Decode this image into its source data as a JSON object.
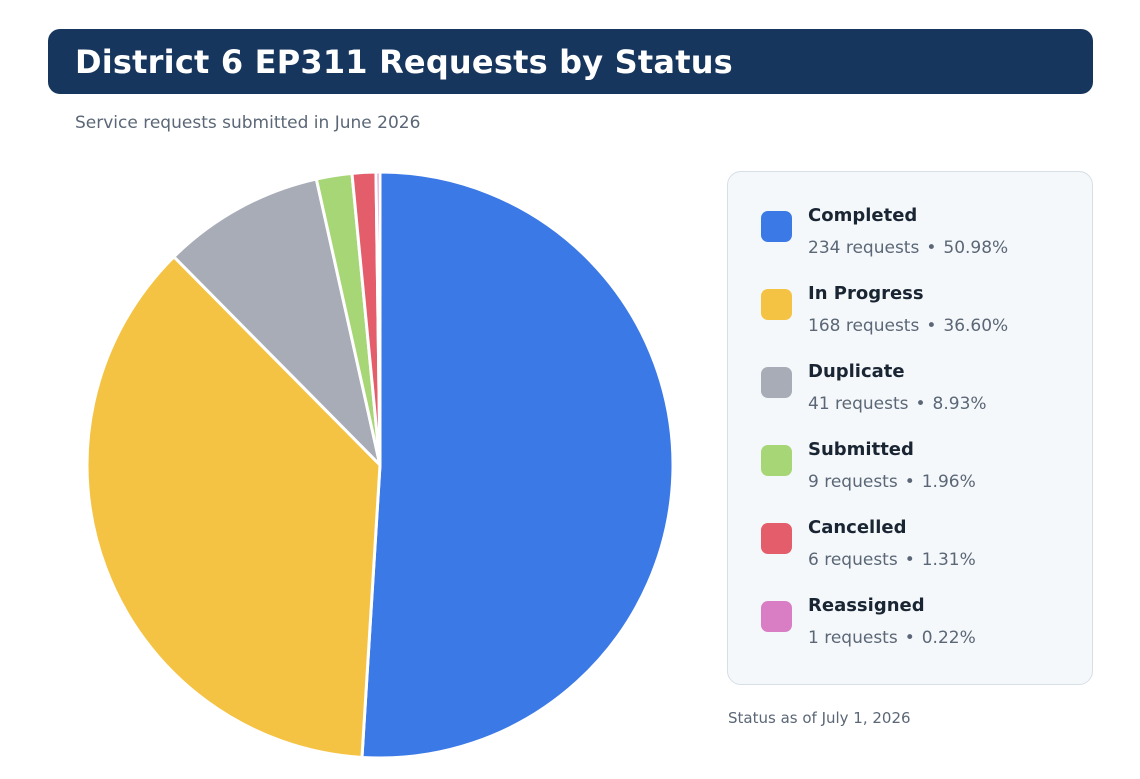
{
  "header": {
    "title": "District 6 EP311 Requests by Status",
    "subtitle": "Service requests submitted in June 2026"
  },
  "footnote": "Status as of July 1, 2026",
  "legend": {
    "count_suffix": "requests",
    "separator": "•"
  },
  "chart_data": {
    "type": "pie",
    "title": "District 6 EP311 Requests by Status",
    "subtitle": "Service requests submitted in June 2026",
    "legend_position": "right",
    "slices": [
      {
        "label": "Completed",
        "value": 234,
        "percent": "50.98%",
        "color": "#3b79e6"
      },
      {
        "label": "In Progress",
        "value": 168,
        "percent": "36.60%",
        "color": "#f5c343"
      },
      {
        "label": "Duplicate",
        "value": 41,
        "percent": "8.93%",
        "color": "#a7acb7"
      },
      {
        "label": "Submitted",
        "value": 9,
        "percent": "1.96%",
        "color": "#a7d676"
      },
      {
        "label": "Cancelled",
        "value": 6,
        "percent": "1.31%",
        "color": "#e35d6a"
      },
      {
        "label": "Reassigned",
        "value": 1,
        "percent": "0.22%",
        "color": "#d97ec4"
      }
    ]
  }
}
